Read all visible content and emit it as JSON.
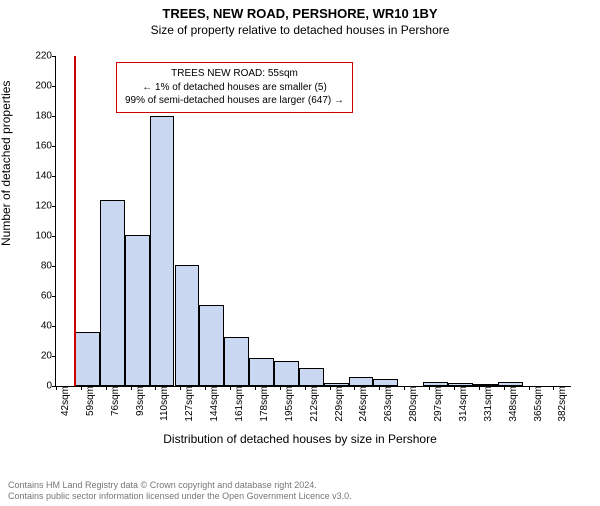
{
  "title_main": "TREES, NEW ROAD, PERSHORE, WR10 1BY",
  "title_sub": "Size of property relative to detached houses in Pershore",
  "ylabel": "Number of detached properties",
  "xlabel": "Distribution of detached houses by size in Pershore",
  "chart": {
    "type": "histogram",
    "ylim": [
      0,
      220
    ],
    "ytick_step": 20,
    "background_color": "#ffffff",
    "bar_fill": "#c9d8f0",
    "bar_stroke": "#000000",
    "bar_stroke_width": 0.5,
    "x_domain_min": 42,
    "x_domain_max": 394,
    "x_tick_start": 42,
    "x_tick_step": 17,
    "x_tick_count": 21,
    "x_tick_unit": "sqm",
    "bin_start": 55,
    "bin_width": 17,
    "values": [
      36,
      124,
      101,
      180,
      81,
      54,
      33,
      19,
      17,
      12,
      2,
      6,
      5,
      0,
      3,
      2,
      1,
      3,
      0,
      0
    ],
    "marker": {
      "position_sqm": 55,
      "color": "#cc0000",
      "line_width": 2
    },
    "annotation": {
      "border_color": "#cc0000",
      "lines": [
        "TREES NEW ROAD: 55sqm",
        "← 1% of detached houses are smaller (5)",
        "99% of semi-detached houses are larger (647) →"
      ],
      "fontsize": 10
    }
  },
  "footer": {
    "line1": "Contains HM Land Registry data © Crown copyright and database right 2024.",
    "line2": "Contains public sector information licensed under the Open Government Licence v3.0.",
    "color": "#777777"
  }
}
